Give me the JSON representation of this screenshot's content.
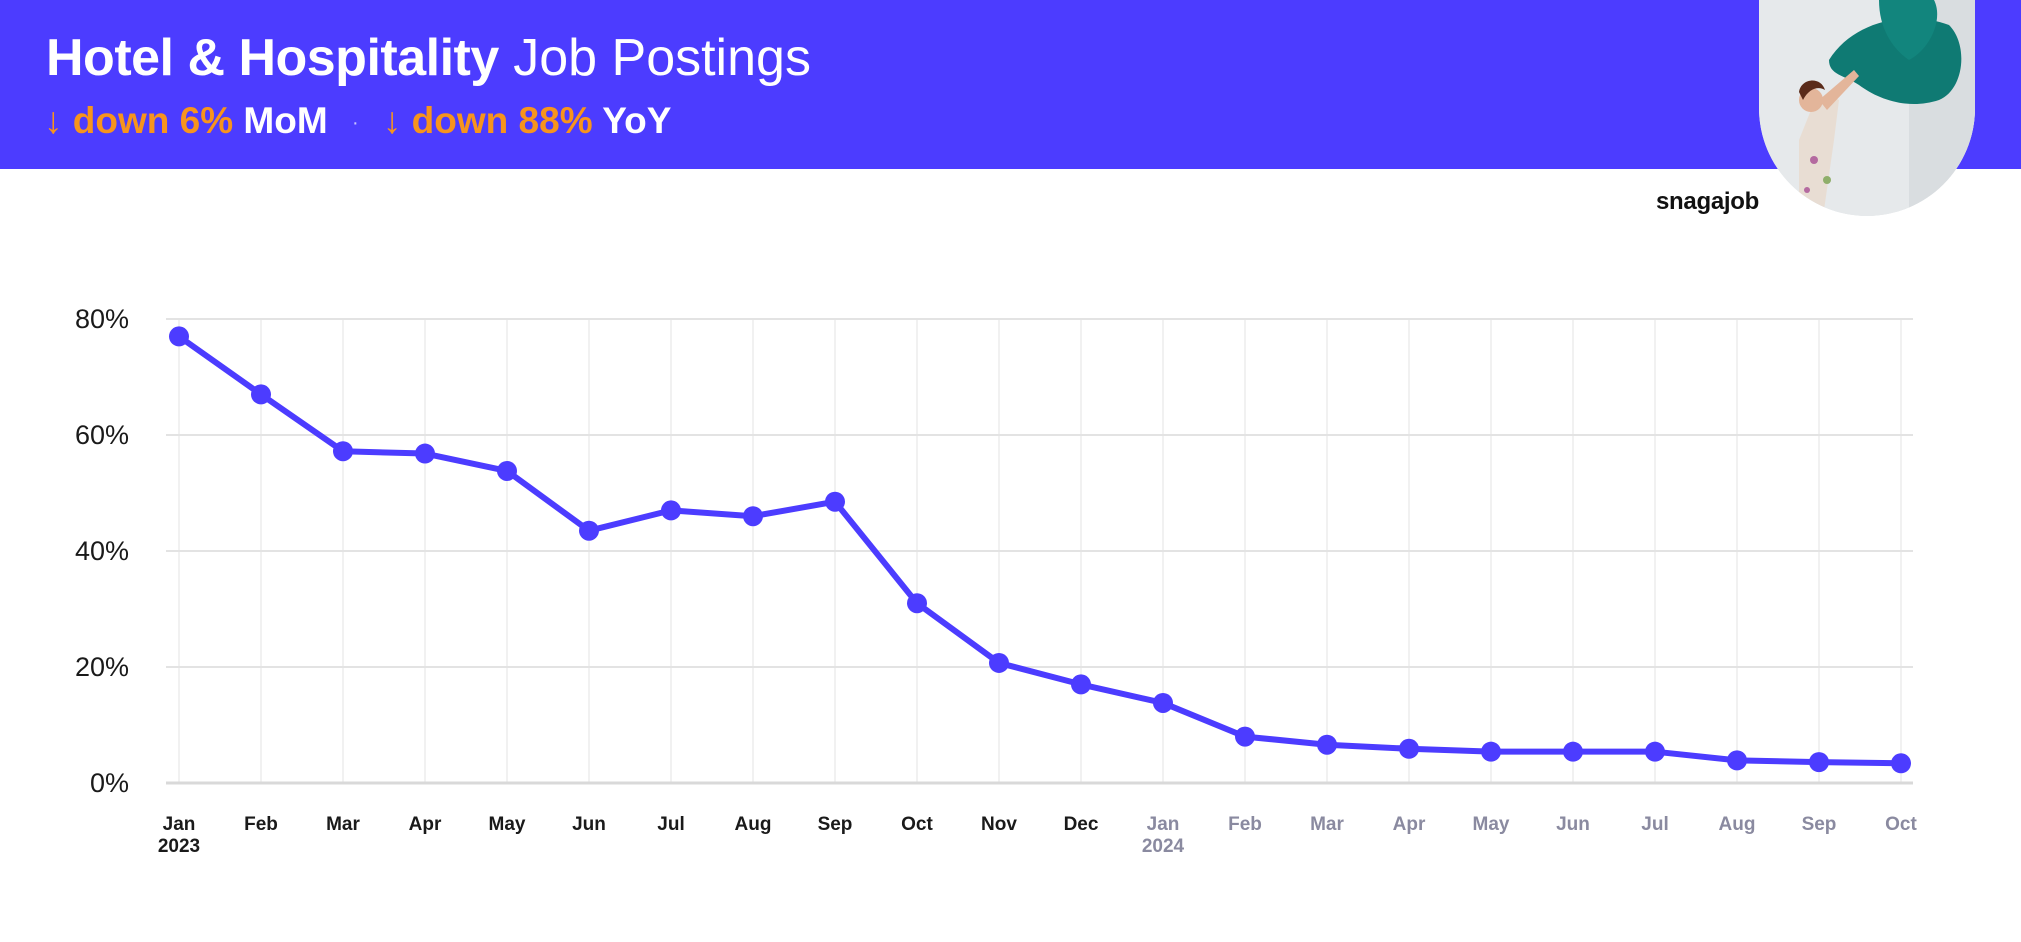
{
  "header": {
    "title_bold": "Hotel & Hospitality",
    "title_rest": "Job Postings",
    "mom": {
      "arrow": "↓",
      "change": "down 6%",
      "label": "MoM"
    },
    "separator": "·",
    "yoy": {
      "arrow": "↓",
      "change": "down 88%",
      "label": "YoY"
    }
  },
  "brand": {
    "logo_text": "snagajob"
  },
  "colors": {
    "header_bg": "#4c3cff",
    "accent": "#f7941d",
    "series": "#4c3cff"
  },
  "chart_data": {
    "type": "line",
    "x": [
      "Jan",
      "Feb",
      "Mar",
      "Apr",
      "May",
      "Jun",
      "Jul",
      "Aug",
      "Sep",
      "Oct",
      "Nov",
      "Dec",
      "Jan",
      "Feb",
      "Mar",
      "Apr",
      "May",
      "Jun",
      "Jul",
      "Aug",
      "Sep",
      "Oct"
    ],
    "year_labels": [
      {
        "index": 0,
        "label": "2023"
      },
      {
        "index": 12,
        "label": "2024"
      }
    ],
    "series": [
      {
        "values": [
          77,
          67,
          57.2,
          56.8,
          53.8,
          43.5,
          47,
          46,
          48.5,
          31,
          20.7,
          17,
          13.8,
          8,
          6.6,
          5.9,
          5.4,
          5.4,
          5.4,
          3.9,
          3.6,
          3.4
        ]
      }
    ],
    "ylim": [
      0,
      80
    ],
    "yticks": [
      0,
      20,
      40,
      60,
      80
    ],
    "ytick_labels": [
      "0%",
      "20%",
      "40%",
      "60%",
      "80%"
    ],
    "title": "",
    "xlabel": "",
    "ylabel": "",
    "grid": true,
    "legend": "none"
  }
}
